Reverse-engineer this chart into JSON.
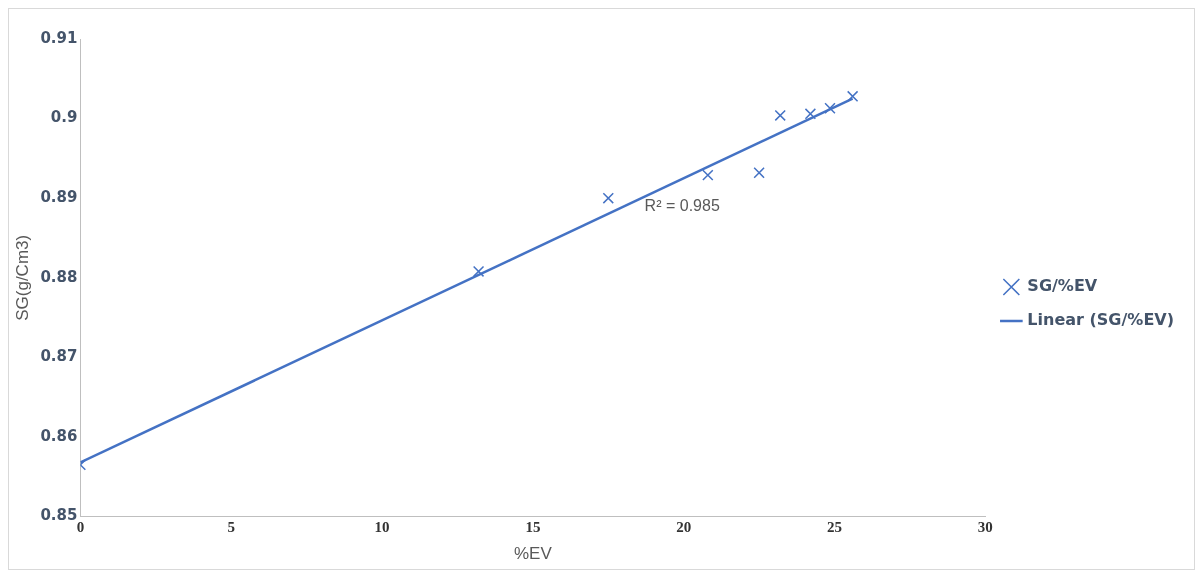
{
  "chart_data": {
    "type": "scatter",
    "xlabel": "%EV",
    "ylabel": "SG(g/Cm3)",
    "xlim": [
      0,
      30
    ],
    "xticks": [
      0,
      5,
      10,
      15,
      20,
      25,
      30
    ],
    "ylim": [
      0.85,
      0.91
    ],
    "yticks": [
      0.85,
      0.86,
      0.87,
      0.88,
      0.89,
      0.9,
      0.91
    ],
    "grid": false,
    "legend": "right",
    "marker": "cross",
    "series": [
      {
        "name": "SG/%EV",
        "color": "#4472c4",
        "x": [
          0,
          13.2,
          17.5,
          20.8,
          22.5,
          23.2,
          24.2,
          24.85,
          25.6
        ],
        "values": [
          0.8565,
          0.8808,
          0.89,
          0.8929,
          0.8932,
          0.9004,
          0.9006,
          0.9013,
          0.9028
        ]
      },
      {
        "name": "Linear (SG/%EV)",
        "type": "line",
        "color": "#4472c4",
        "marker": "none",
        "line_style": "solid",
        "x": [
          0,
          25.6
        ],
        "values": [
          0.8568,
          0.9025
        ]
      }
    ],
    "annotations": [
      "R² = 0.985"
    ]
  }
}
